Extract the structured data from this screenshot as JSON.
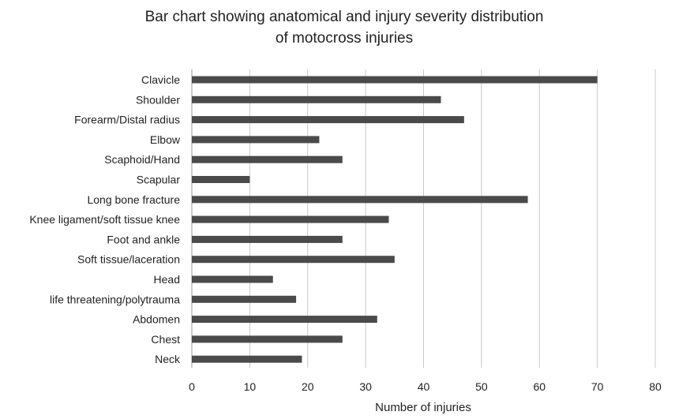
{
  "chart_data": {
    "type": "bar",
    "orientation": "horizontal",
    "title_lines": [
      "Bar chart showing anatomical and injury severity distribution",
      "of motocross injuries"
    ],
    "xlabel": "Number of injuries",
    "ylabel": "",
    "xlim": [
      0,
      80
    ],
    "xticks": [
      0,
      10,
      20,
      30,
      40,
      50,
      60,
      70,
      80
    ],
    "grid": "vertical",
    "legend": "none",
    "bar_color": "#4a4a4a",
    "grid_color": "#c8c8c8",
    "categories": [
      "Clavicle",
      "Shoulder",
      "Forearm/Distal radius",
      "Elbow",
      "Scaphoid/Hand",
      "Scapular",
      "Long bone fracture",
      "Knee ligament/soft tissue knee",
      "Foot and ankle",
      "Soft tissue/laceration",
      "Head",
      "life threatening/polytrauma",
      "Abdomen",
      "Chest",
      "Neck"
    ],
    "values": [
      70,
      43,
      47,
      22,
      26,
      10,
      58,
      34,
      26,
      35,
      14,
      18,
      32,
      26,
      19
    ]
  }
}
